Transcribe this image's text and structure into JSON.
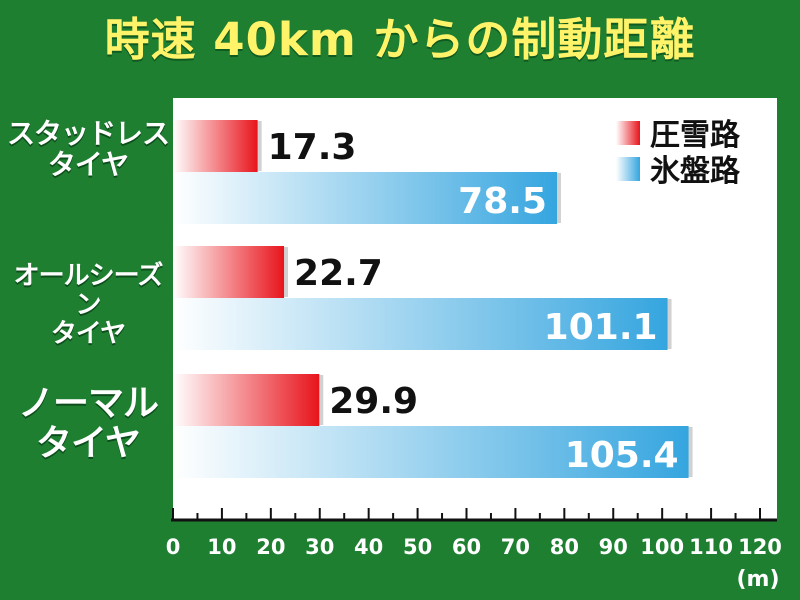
{
  "header": {
    "title": "時速 40km からの制動距離"
  },
  "chart_data": {
    "type": "bar",
    "orientation": "horizontal",
    "title": "時速 40km からの制動距離",
    "categories": [
      {
        "lines": [
          "スタッドレス",
          "タイヤ"
        ]
      },
      {
        "lines": [
          "オールシーズン",
          "タイヤ"
        ]
      },
      {
        "lines": [
          "ノーマル",
          "タイヤ"
        ]
      }
    ],
    "series": [
      {
        "name": "圧雪路",
        "color": "#e8141c",
        "values": [
          17.3,
          22.7,
          29.9
        ]
      },
      {
        "name": "氷盤路",
        "color": "#35a5df",
        "values": [
          78.5,
          101.1,
          105.4
        ]
      }
    ],
    "value_labels": [
      [
        "17.3",
        "78.5"
      ],
      [
        "22.7",
        "101.1"
      ],
      [
        "29.9",
        "105.4"
      ]
    ],
    "xlim": [
      0,
      120
    ],
    "xticks": [
      "0",
      "10",
      "20",
      "30",
      "40",
      "50",
      "60",
      "70",
      "80",
      "90",
      "100",
      "110",
      "120"
    ],
    "xlabel": "(m)",
    "legend": "top-right",
    "grid": false
  }
}
